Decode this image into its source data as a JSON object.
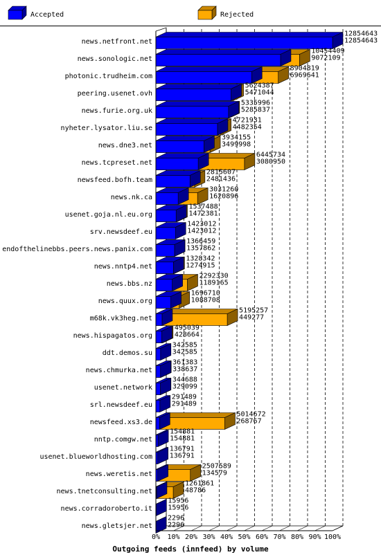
{
  "chart_data": {
    "type": "bar",
    "orientation": "horizontal",
    "title": "Outgoing feeds (innfeed) by volume",
    "legend": {
      "position": "top",
      "entries": [
        {
          "label": "Accepted",
          "color": "#0000ff"
        },
        {
          "label": "Rejected",
          "color": "#ffaa00"
        }
      ]
    },
    "x_axis": {
      "ticks": [
        "0%",
        "10%",
        "20%",
        "30%",
        "40%",
        "50%",
        "60%",
        "70%",
        "80%",
        "90%",
        "100%"
      ],
      "range": [
        0,
        100
      ],
      "grid": true
    },
    "categories": [
      {
        "name": "news.netfront.net",
        "total": 12854643,
        "accepted": 12854643
      },
      {
        "name": "news.sonologic.net",
        "total": 10454409,
        "accepted": 9072109
      },
      {
        "name": "photonic.trudheim.com",
        "total": 8904819,
        "accepted": 6969641
      },
      {
        "name": "peering.usenet.ovh",
        "total": 5624387,
        "accepted": 5471044
      },
      {
        "name": "news.furie.org.uk",
        "total": 5335996,
        "accepted": 5285837
      },
      {
        "name": "nyheter.lysator.liu.se",
        "total": 4721931,
        "accepted": 4482354
      },
      {
        "name": "news.dne3.net",
        "total": 3934155,
        "accepted": 3499998
      },
      {
        "name": "news.tcpreset.net",
        "total": 6445734,
        "accepted": 3080950
      },
      {
        "name": "newsfeed.bofh.team",
        "total": 2815607,
        "accepted": 2481436
      },
      {
        "name": "news.nk.ca",
        "total": 3031260,
        "accepted": 1620896
      },
      {
        "name": "usenet.goja.nl.eu.org",
        "total": 1537488,
        "accepted": 1472381
      },
      {
        "name": "srv.newsdeef.eu",
        "total": 1423012,
        "accepted": 1423012
      },
      {
        "name": "endofthelinebbs.peers.news.panix.com",
        "total": 1366459,
        "accepted": 1357862
      },
      {
        "name": "news.nntp4.net",
        "total": 1328342,
        "accepted": 1274915
      },
      {
        "name": "news.bbs.nz",
        "total": 2292330,
        "accepted": 1189165
      },
      {
        "name": "news.quux.org",
        "total": 1696710,
        "accepted": 1088708
      },
      {
        "name": "m68k.vk3heg.net",
        "total": 5195257,
        "accepted": 449277
      },
      {
        "name": "news.hispagatos.org",
        "total": 495039,
        "accepted": 428664
      },
      {
        "name": "ddt.demos.su",
        "total": 342585,
        "accepted": 342585
      },
      {
        "name": "news.chmurka.net",
        "total": 361383,
        "accepted": 338637
      },
      {
        "name": "usenet.network",
        "total": 344688,
        "accepted": 329099
      },
      {
        "name": "srl.newsdeef.eu",
        "total": 291489,
        "accepted": 291489
      },
      {
        "name": "newsfeed.xs3.de",
        "total": 5014672,
        "accepted": 268767
      },
      {
        "name": "nntp.comgw.net",
        "total": 154881,
        "accepted": 154881
      },
      {
        "name": "usenet.blueworldhosting.com",
        "total": 136791,
        "accepted": 136791
      },
      {
        "name": "news.weretis.net",
        "total": 2507589,
        "accepted": 134579
      },
      {
        "name": "news.tnetconsulting.net",
        "total": 1261861,
        "accepted": 48786
      },
      {
        "name": "news.corradoroberto.it",
        "total": 15956,
        "accepted": 15956
      },
      {
        "name": "news.gletsjer.net",
        "total": 2296,
        "accepted": 2296
      }
    ],
    "max_value": 12854643
  }
}
